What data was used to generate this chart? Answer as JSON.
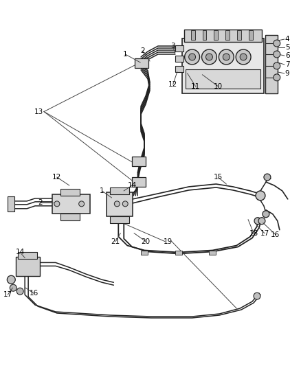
{
  "background_color": "#ffffff",
  "line_color": "#222222",
  "label_color": "#000000",
  "figsize": [
    4.38,
    5.33
  ],
  "dpi": 100,
  "gray_fill": "#d8d8d8",
  "light_fill": "#efefef"
}
